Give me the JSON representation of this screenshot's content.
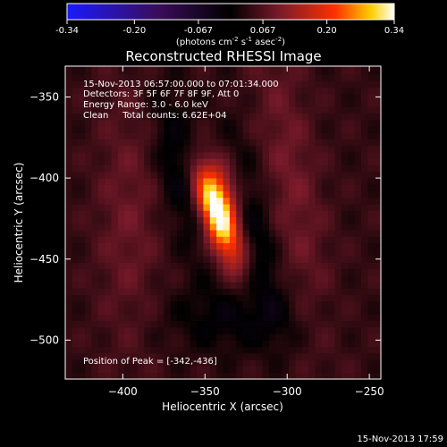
{
  "colorbar": {
    "ticks": [
      "-0.34",
      "-0.20",
      "-0.067",
      "0.067",
      "0.20",
      "0.34"
    ],
    "tick_values": [
      -0.34,
      -0.2,
      -0.067,
      0.067,
      0.2,
      0.34
    ],
    "range": [
      -0.34,
      0.34
    ],
    "units_prefix": "(photons cm",
    "units_sup1": "-2",
    "units_mid1": " s",
    "units_sup2": "-1",
    "units_mid2": " asec",
    "units_sup3": "-2",
    "units_suffix": ")"
  },
  "chart_data": {
    "type": "heatmap",
    "title": "Reconstructed RHESSI Image",
    "xlabel": "Heliocentric X (arcsec)",
    "ylabel": "Heliocentric Y (arcsec)",
    "xlim": [
      -435,
      -243
    ],
    "ylim": [
      -524,
      -331
    ],
    "x_ticks": [
      -400,
      -350,
      -300,
      -250
    ],
    "x_tick_labels": [
      "−400",
      "−350",
      "−300",
      "−250"
    ],
    "y_ticks": [
      -350,
      -400,
      -450,
      -500
    ],
    "y_tick_labels": [
      "−350",
      "−400",
      "−450",
      "−500"
    ],
    "peak_position": [
      -342,
      -436
    ],
    "annotations": [
      "15-Nov-2013 06:57:00.000 to 07:01:34.000",
      "Detectors: 3F 5F 6F 7F 8F 9F, Att 0",
      "Energy Range: 3.0 - 6.0 keV",
      "Clean     Total counts: 6.62E+04"
    ],
    "peak_label": "Position of Peak = [-342,-436]",
    "colormap": [
      "#1a1aff",
      "#3a0c5a",
      "#000000",
      "#7a1a2a",
      "#ff3000",
      "#ffd000",
      "#ffffff"
    ]
  },
  "footer": {
    "timestamp": "15-Nov-2013 17:59"
  }
}
